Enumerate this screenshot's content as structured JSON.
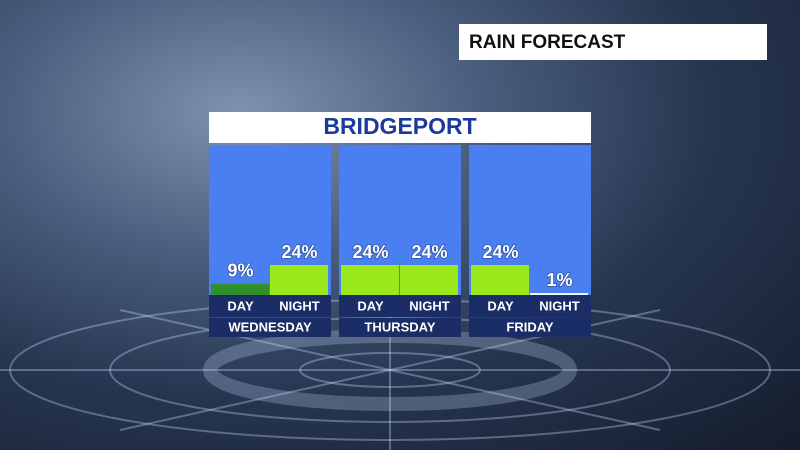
{
  "header": {
    "title": "RAIN FORECAST"
  },
  "chart_data": {
    "type": "bar",
    "title": "BRIDGEPORT",
    "groups": [
      "WEDNESDAY",
      "THURSDAY",
      "FRIDAY"
    ],
    "categories": [
      "DAY",
      "NIGHT",
      "DAY",
      "NIGHT",
      "DAY",
      "NIGHT"
    ],
    "values": [
      9,
      24,
      24,
      24,
      24,
      1
    ],
    "value_labels": [
      "9%",
      "24%",
      "24%",
      "24%",
      "24%",
      "1%"
    ],
    "colors": [
      "#2f8f2a",
      "#9be81c",
      "#9be81c",
      "#9be81c",
      "#9be81c",
      "#f2f4f8"
    ]
  }
}
